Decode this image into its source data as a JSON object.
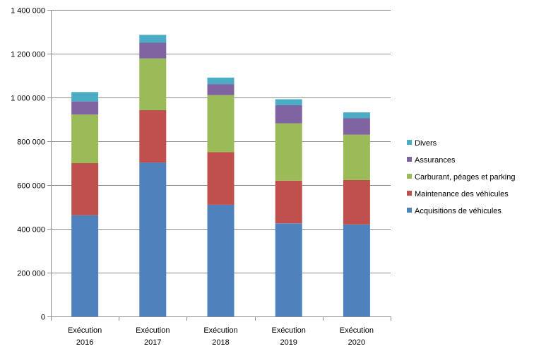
{
  "chart_data": {
    "type": "bar",
    "stacked": true,
    "categories": [
      [
        "Exécution",
        "2016"
      ],
      [
        "Exécution",
        "2017"
      ],
      [
        "Exécution",
        "2018"
      ],
      [
        "Exécution",
        "2019"
      ],
      [
        "Exécution",
        "2020"
      ]
    ],
    "series": [
      {
        "name": "Acquisitions de véhicules",
        "color": "#4f81bd",
        "values": [
          462000,
          703000,
          510000,
          425000,
          420000
        ]
      },
      {
        "name": "Maintenance des véhicules",
        "color": "#c0504d",
        "values": [
          238000,
          239000,
          240000,
          195000,
          203000
        ]
      },
      {
        "name": "Carburant, péages et parking",
        "color": "#9bbb59",
        "values": [
          222000,
          236000,
          261000,
          262000,
          207000
        ]
      },
      {
        "name": "Assurances",
        "color": "#8064a2",
        "values": [
          60000,
          72000,
          50000,
          83000,
          75000
        ]
      },
      {
        "name": "Divers",
        "color": "#4bacc6",
        "values": [
          43000,
          36000,
          30000,
          27000,
          27000
        ]
      }
    ],
    "ylim": [
      0,
      1400000
    ],
    "yticks": [
      0,
      200000,
      400000,
      600000,
      800000,
      1000000,
      1200000,
      1400000
    ],
    "ytick_labels": [
      "0",
      "200 000",
      "400 000",
      "600 000",
      "800 000",
      "1 000 000",
      "1 200 000",
      "1 400 000"
    ],
    "grid": true,
    "legend_position": "right",
    "title": "",
    "xlabel": "",
    "ylabel": ""
  }
}
